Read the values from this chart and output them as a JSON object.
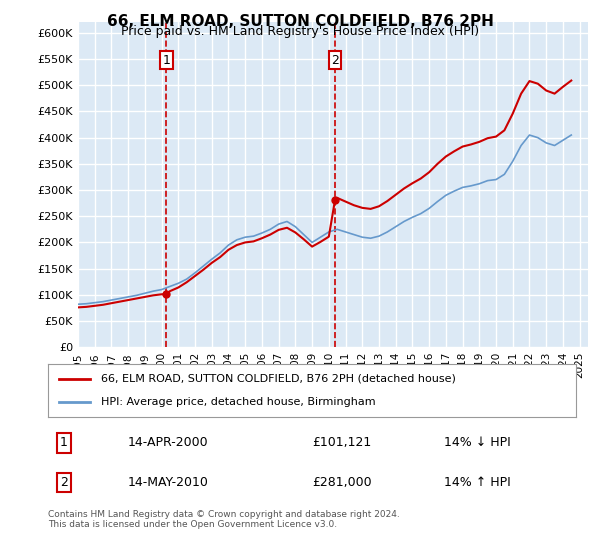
{
  "title": "66, ELM ROAD, SUTTON COLDFIELD, B76 2PH",
  "subtitle": "Price paid vs. HM Land Registry's House Price Index (HPI)",
  "ylabel_format": "£{0}K",
  "yticks": [
    0,
    50000,
    100000,
    150000,
    200000,
    250000,
    300000,
    350000,
    400000,
    450000,
    500000,
    550000,
    600000
  ],
  "bg_color": "#dce9f5",
  "plot_bg": "#dce9f5",
  "grid_color": "#ffffff",
  "marker1_year": 2000.29,
  "marker2_year": 2010.37,
  "marker1_label": "1",
  "marker2_label": "2",
  "legend_line1": "66, ELM ROAD, SUTTON COLDFIELD, B76 2PH (detached house)",
  "legend_line2": "HPI: Average price, detached house, Birmingham",
  "table_row1": [
    "1",
    "14-APR-2000",
    "£101,121",
    "14% ↓ HPI"
  ],
  "table_row2": [
    "2",
    "14-MAY-2010",
    "£281,000",
    "14% ↑ HPI"
  ],
  "footer": "Contains HM Land Registry data © Crown copyright and database right 2024.\nThis data is licensed under the Open Government Licence v3.0.",
  "hpi_color": "#6699cc",
  "price_color": "#cc0000",
  "marker_color": "#cc0000",
  "xmin": 1995,
  "xmax": 2025.5
}
